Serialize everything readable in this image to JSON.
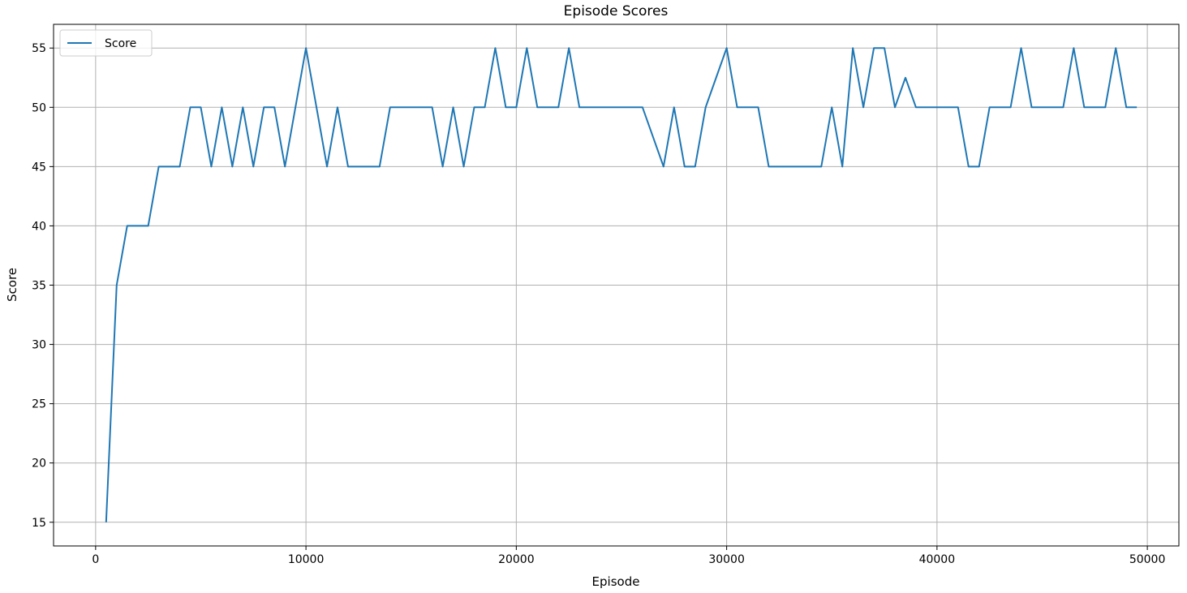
{
  "chart_data": {
    "type": "line",
    "title": "Episode Scores",
    "xlabel": "Episode",
    "ylabel": "Score",
    "xlim": [
      -2000,
      51500
    ],
    "ylim": [
      13,
      57
    ],
    "x_ticks": [
      0,
      10000,
      20000,
      30000,
      40000,
      50000
    ],
    "y_ticks": [
      15,
      20,
      25,
      30,
      35,
      40,
      45,
      50,
      55
    ],
    "grid": true,
    "legend_position": "upper-left",
    "colors": {
      "series": "#1f77b4",
      "grid": "#b0b0b0",
      "axes": "#000000"
    },
    "series": [
      {
        "name": "Score",
        "x": [
          500,
          1000,
          1500,
          2000,
          2500,
          3000,
          3500,
          4000,
          4500,
          5000,
          5500,
          6000,
          6500,
          7000,
          7500,
          8000,
          8500,
          9000,
          9500,
          10000,
          10500,
          11000,
          11500,
          12000,
          12500,
          13000,
          13500,
          14000,
          14500,
          15000,
          15500,
          16000,
          16500,
          17000,
          17500,
          18000,
          18500,
          19000,
          19500,
          20000,
          20500,
          21000,
          21500,
          22000,
          22500,
          23000,
          23500,
          24000,
          24500,
          25000,
          25500,
          26000,
          26500,
          27000,
          27500,
          28000,
          28500,
          29000,
          29500,
          30000,
          30500,
          31000,
          31500,
          32000,
          32500,
          33000,
          33500,
          34000,
          34500,
          35000,
          35500,
          36000,
          36500,
          37000,
          37500,
          38000,
          38500,
          39000,
          39500,
          40000,
          40500,
          41000,
          41500,
          42000,
          42500,
          43000,
          43500,
          44000,
          44500,
          45000,
          45500,
          46000,
          46500,
          47000,
          47500,
          48000,
          48500,
          49000,
          49500
        ],
        "values": [
          15,
          35,
          40,
          40,
          40,
          45,
          45,
          45,
          50,
          50,
          45,
          50,
          45,
          50,
          45,
          50,
          50,
          45,
          50,
          55,
          50,
          45,
          50,
          45,
          45,
          45,
          45,
          50,
          50,
          50,
          50,
          50,
          45,
          50,
          45,
          50,
          50,
          55,
          50,
          50,
          55,
          50,
          50,
          50,
          55,
          50,
          50,
          50,
          50,
          50,
          50,
          50,
          47.5,
          45,
          50,
          45,
          45,
          50,
          52.5,
          55,
          50,
          50,
          50,
          45,
          45,
          45,
          45,
          45,
          45,
          50,
          45,
          55,
          50,
          55,
          55,
          50,
          52.5,
          50,
          50,
          50,
          50,
          50,
          45,
          45,
          50,
          50,
          50,
          55,
          50,
          50,
          50,
          50,
          55,
          50,
          50,
          50,
          55,
          50,
          50
        ]
      }
    ]
  }
}
